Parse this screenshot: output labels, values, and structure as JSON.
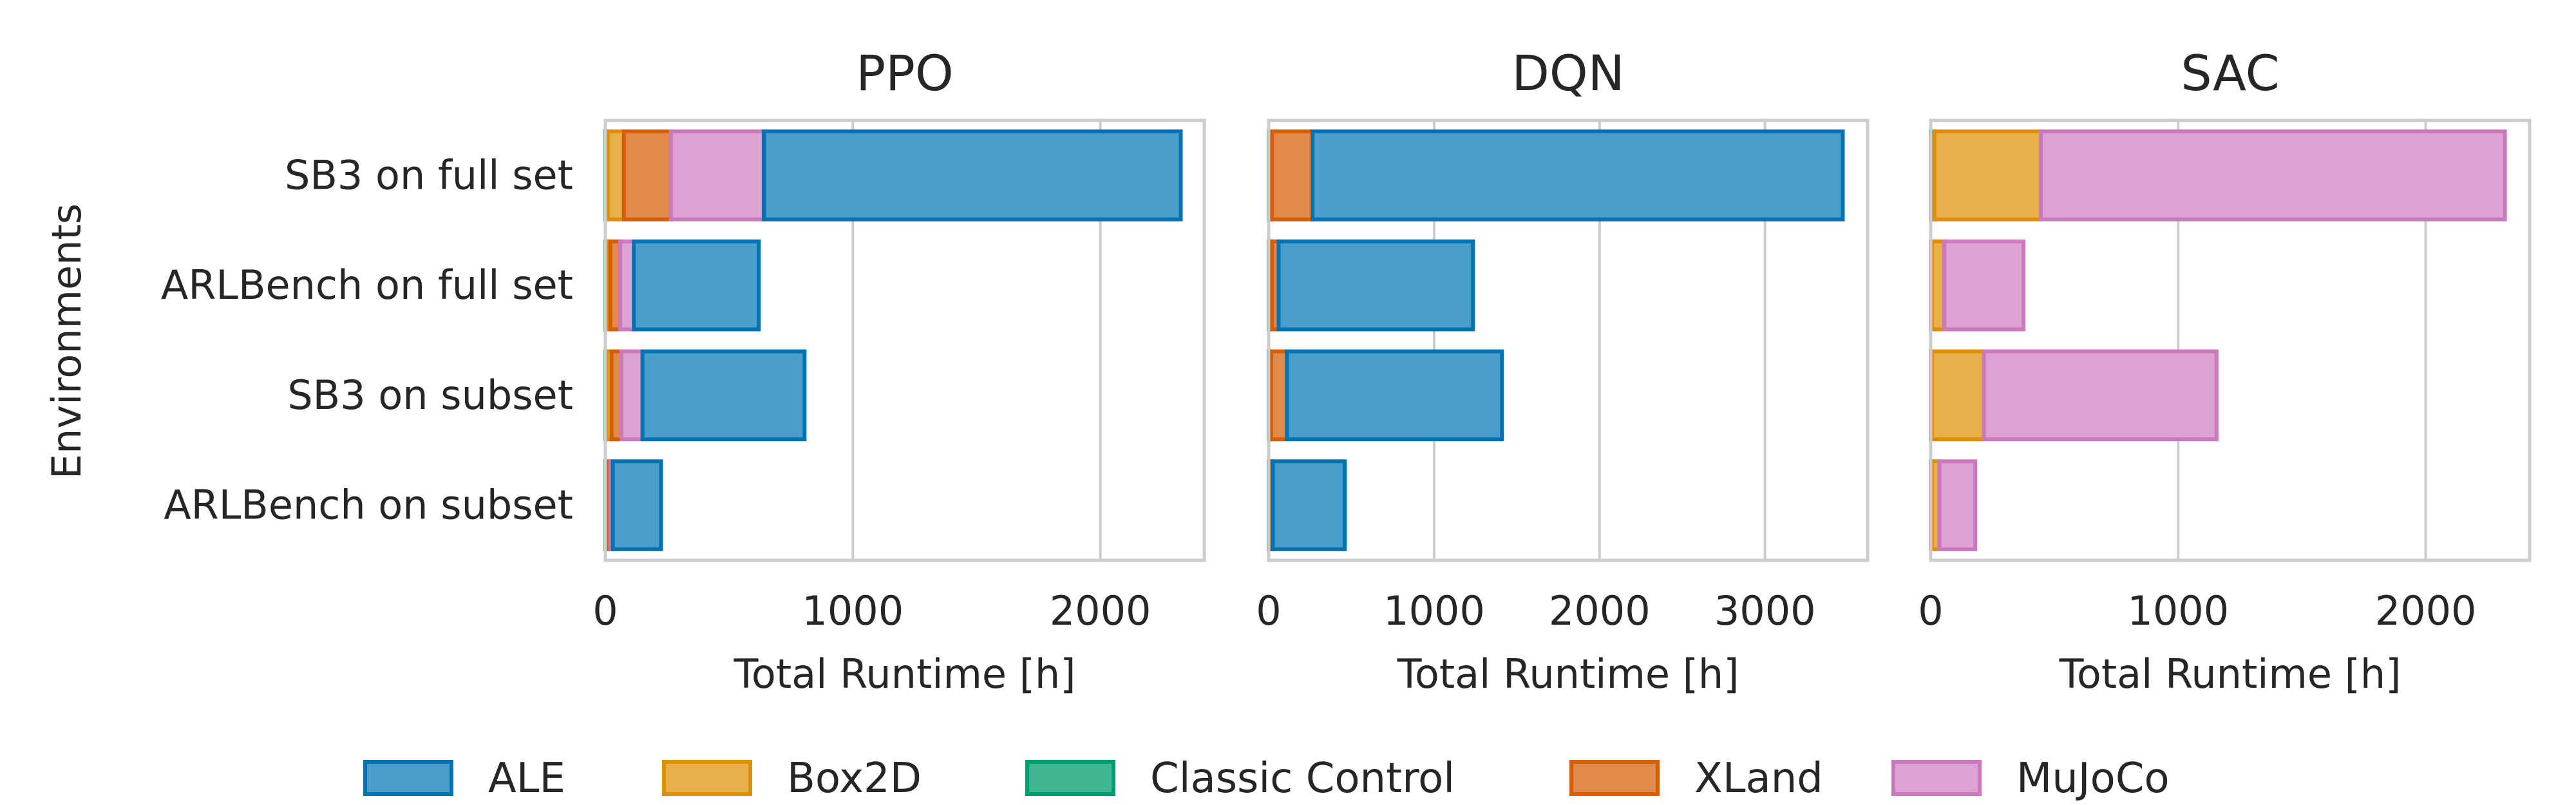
{
  "chart_data": {
    "type": "bar",
    "orientation": "horizontal",
    "stacked": true,
    "ylabel": "Environments",
    "xlabel": "Total Runtime [h]",
    "categories": [
      "SB3 on full set",
      "ARLBench on full set",
      "SB3 on subset",
      "ARLBench on subset"
    ],
    "legend": {
      "placement": "bottom-center",
      "entries": [
        "ALE",
        "Box2D",
        "Classic Control",
        "XLand",
        "MuJoCo"
      ]
    },
    "colors": {
      "ALE": {
        "fill": "#4b9dcc",
        "edge": "#0173b2"
      },
      "Box2D": {
        "fill": "#e7b04a",
        "edge": "#de8f05"
      },
      "Classic Control": {
        "fill": "#3fb592",
        "edge": "#029e73"
      },
      "XLand": {
        "fill": "#e08b4c",
        "edge": "#d55e00"
      },
      "MuJoCo": {
        "fill": "#dba2d2",
        "edge": "#cc78bc"
      }
    },
    "series_order": [
      "Classic Control",
      "Box2D",
      "XLand",
      "MuJoCo",
      "ALE"
    ],
    "grid": true,
    "panels": [
      {
        "title": "PPO",
        "xlim": [
          0,
          2420
        ],
        "xticks": [
          0,
          1000,
          2000
        ],
        "series": [
          {
            "name": "Classic Control",
            "values": [
              10,
              5,
              5,
              5
            ]
          },
          {
            "name": "Box2D",
            "values": [
              65,
              15,
              20,
              5
            ]
          },
          {
            "name": "XLand",
            "values": [
              190,
              40,
              40,
              10
            ]
          },
          {
            "name": "MuJoCo",
            "values": [
              375,
              55,
              85,
              10
            ]
          },
          {
            "name": "ALE",
            "values": [
              1685,
              505,
              655,
              195
            ]
          }
        ]
      },
      {
        "title": "DQN",
        "xlim": [
          0,
          3620
        ],
        "xticks": [
          0,
          1000,
          2000,
          3000
        ],
        "series": [
          {
            "name": "Classic Control",
            "values": [
              5,
              5,
              5,
              5
            ]
          },
          {
            "name": "Box2D",
            "values": [
              15,
              15,
              10,
              5
            ]
          },
          {
            "name": "XLand",
            "values": [
              245,
              40,
              95,
              15
            ]
          },
          {
            "name": "MuJoCo",
            "values": [
              0,
              0,
              0,
              0
            ]
          },
          {
            "name": "ALE",
            "values": [
              3205,
              1175,
              1300,
              435
            ]
          }
        ]
      },
      {
        "title": "SAC",
        "xlim": [
          0,
          2420
        ],
        "xticks": [
          0,
          1000,
          2000
        ],
        "series": [
          {
            "name": "Classic Control",
            "values": [
              15,
              5,
              5,
              5
            ]
          },
          {
            "name": "Box2D",
            "values": [
              430,
              50,
              210,
              30
            ]
          },
          {
            "name": "XLand",
            "values": [
              0,
              0,
              0,
              0
            ]
          },
          {
            "name": "MuJoCo",
            "values": [
              1875,
              320,
              940,
              145
            ]
          },
          {
            "name": "ALE",
            "values": [
              0,
              0,
              0,
              0
            ]
          }
        ]
      }
    ]
  }
}
